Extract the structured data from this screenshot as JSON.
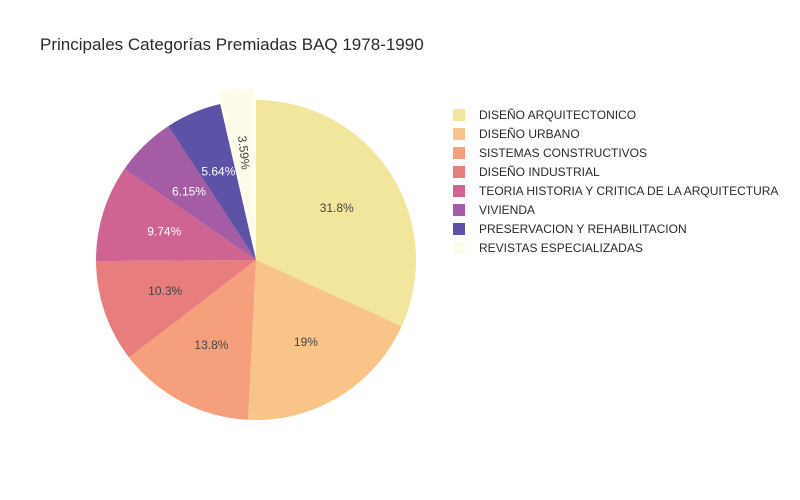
{
  "chart_data": {
    "type": "pie",
    "title": "Principales Categorías Premiadas BAQ 1978-1990",
    "legend_placement": "right",
    "slices": [
      {
        "label": "DISEÑO ARQUITECTONICO",
        "value": 31.8,
        "display": "31.8%",
        "color": "#f2e69c"
      },
      {
        "label": "DISEÑO URBANO",
        "value": 19,
        "display": "19%",
        "color": "#f8c487"
      },
      {
        "label": "SISTEMAS CONSTRUCTIVOS",
        "value": 13.8,
        "display": "13.8%",
        "color": "#f59f7d"
      },
      {
        "label": "DISEÑO INDUSTRIAL",
        "value": 10.3,
        "display": "10.3%",
        "color": "#e87d7e"
      },
      {
        "label": "TEORIA HISTORIA Y CRITICA DE LA ARQUITECTURA",
        "value": 9.74,
        "display": "9.74%",
        "color": "#cf6492"
      },
      {
        "label": "VIVIENDA",
        "value": 6.15,
        "display": "6.15%",
        "color": "#a45ca5"
      },
      {
        "label": "PRESERVACION Y REHABILITACION",
        "value": 5.64,
        "display": "5.64%",
        "color": "#5c52a6"
      },
      {
        "label": "REVISTAS ESPECIALIZADAS",
        "value": 3.59,
        "display": "3.59%",
        "color": "#fdfbea"
      }
    ]
  }
}
